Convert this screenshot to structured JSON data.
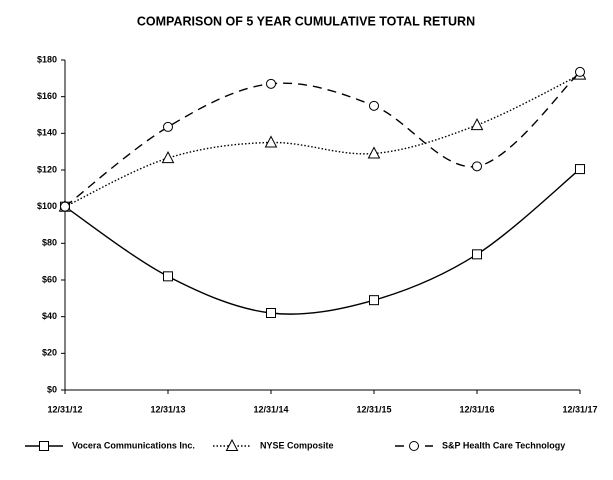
{
  "chart_data": {
    "type": "line",
    "title": "COMPARISON OF 5 YEAR CUMULATIVE TOTAL RETURN",
    "categories": [
      "12/31/12",
      "12/31/13",
      "12/31/14",
      "12/31/15",
      "12/31/16",
      "12/31/17"
    ],
    "series": [
      {
        "name": "Vocera Communications Inc.",
        "color": "#000000",
        "line_style": "solid",
        "marker": "square",
        "values": [
          100,
          62,
          42,
          49,
          74,
          120.5
        ]
      },
      {
        "name": "NYSE Composite",
        "color": "#000000",
        "line_style": "dotted",
        "marker": "triangle",
        "values": [
          100,
          126.5,
          135,
          129,
          144.5,
          172
        ]
      },
      {
        "name": "S&P Health Care Technology",
        "color": "#000000",
        "line_style": "dashed",
        "marker": "circle",
        "values": [
          100,
          143.5,
          167,
          155,
          122,
          173.5
        ]
      }
    ],
    "ylim": [
      0,
      180
    ],
    "yticks": [
      {
        "value": 0,
        "label": "$0"
      },
      {
        "value": 20,
        "label": "$20"
      },
      {
        "value": 40,
        "label": "$40"
      },
      {
        "value": 60,
        "label": "$60"
      },
      {
        "value": 80,
        "label": "$80"
      },
      {
        "value": 100,
        "label": "$100"
      },
      {
        "value": 120,
        "label": "$120"
      },
      {
        "value": 140,
        "label": "$140"
      },
      {
        "value": 160,
        "label": "$160"
      },
      {
        "value": 180,
        "label": "$180"
      }
    ],
    "grid": false,
    "smooth": true,
    "legend": "bottom"
  }
}
